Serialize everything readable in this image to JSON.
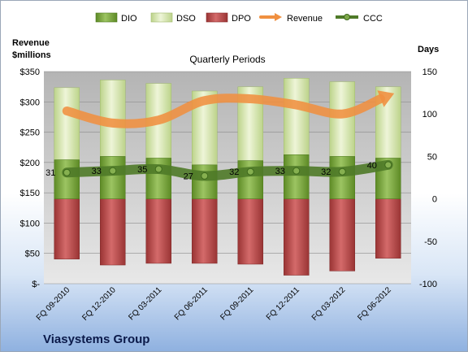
{
  "company": "Viasystems Group",
  "chart_data": {
    "type": "bar",
    "title": "Quarterly Periods",
    "left_axis_title": [
      "Revenue",
      "$millions"
    ],
    "right_axis_title": "Days",
    "categories": [
      "FQ 09-2010",
      "FQ 12-2010",
      "FQ 03-2011",
      "FQ 06-2011",
      "FQ 09-2011",
      "FQ 12-2011",
      "FQ 03-2012",
      "FQ 06-2012"
    ],
    "left_axis": {
      "min": 0,
      "max": 350,
      "ticks": [
        "$-",
        "$50",
        "$100",
        "$150",
        "$200",
        "$250",
        "$300",
        "$350"
      ]
    },
    "right_axis": {
      "min": -100,
      "max": 150,
      "ticks": [
        "-100",
        "-50",
        "0",
        "50",
        "100",
        "150"
      ]
    },
    "legend": [
      "DIO",
      "DSO",
      "DPO",
      "Revenue",
      "CCC"
    ],
    "series": [
      {
        "name": "DIO",
        "axis": "days",
        "values": [
          46,
          50,
          48,
          40,
          45,
          52,
          50,
          48
        ]
      },
      {
        "name": "DSO",
        "axis": "days",
        "values": [
          85,
          90,
          88,
          87,
          87,
          90,
          88,
          84
        ]
      },
      {
        "name": "DPO",
        "axis": "days",
        "values": [
          -71,
          -78,
          -76,
          -76,
          -77,
          -90,
          -85,
          -70
        ]
      },
      {
        "name": "Revenue",
        "axis": "revenue",
        "values": [
          285,
          265,
          270,
          302,
          305,
          295,
          280,
          310
        ]
      },
      {
        "name": "CCC",
        "axis": "days",
        "values": [
          31,
          33,
          35,
          27,
          32,
          33,
          32,
          40
        ]
      }
    ],
    "ccc_labels": [
      "31",
      "33",
      "35",
      "27",
      "32",
      "33",
      "32",
      "40"
    ],
    "colors": {
      "DIO": "#76a03a",
      "DSO": "#d6e6a6",
      "DPO": "#b84a4a",
      "Revenue": "#f09040",
      "CCC": "#4f7a28"
    },
    "legend_position": "top"
  }
}
